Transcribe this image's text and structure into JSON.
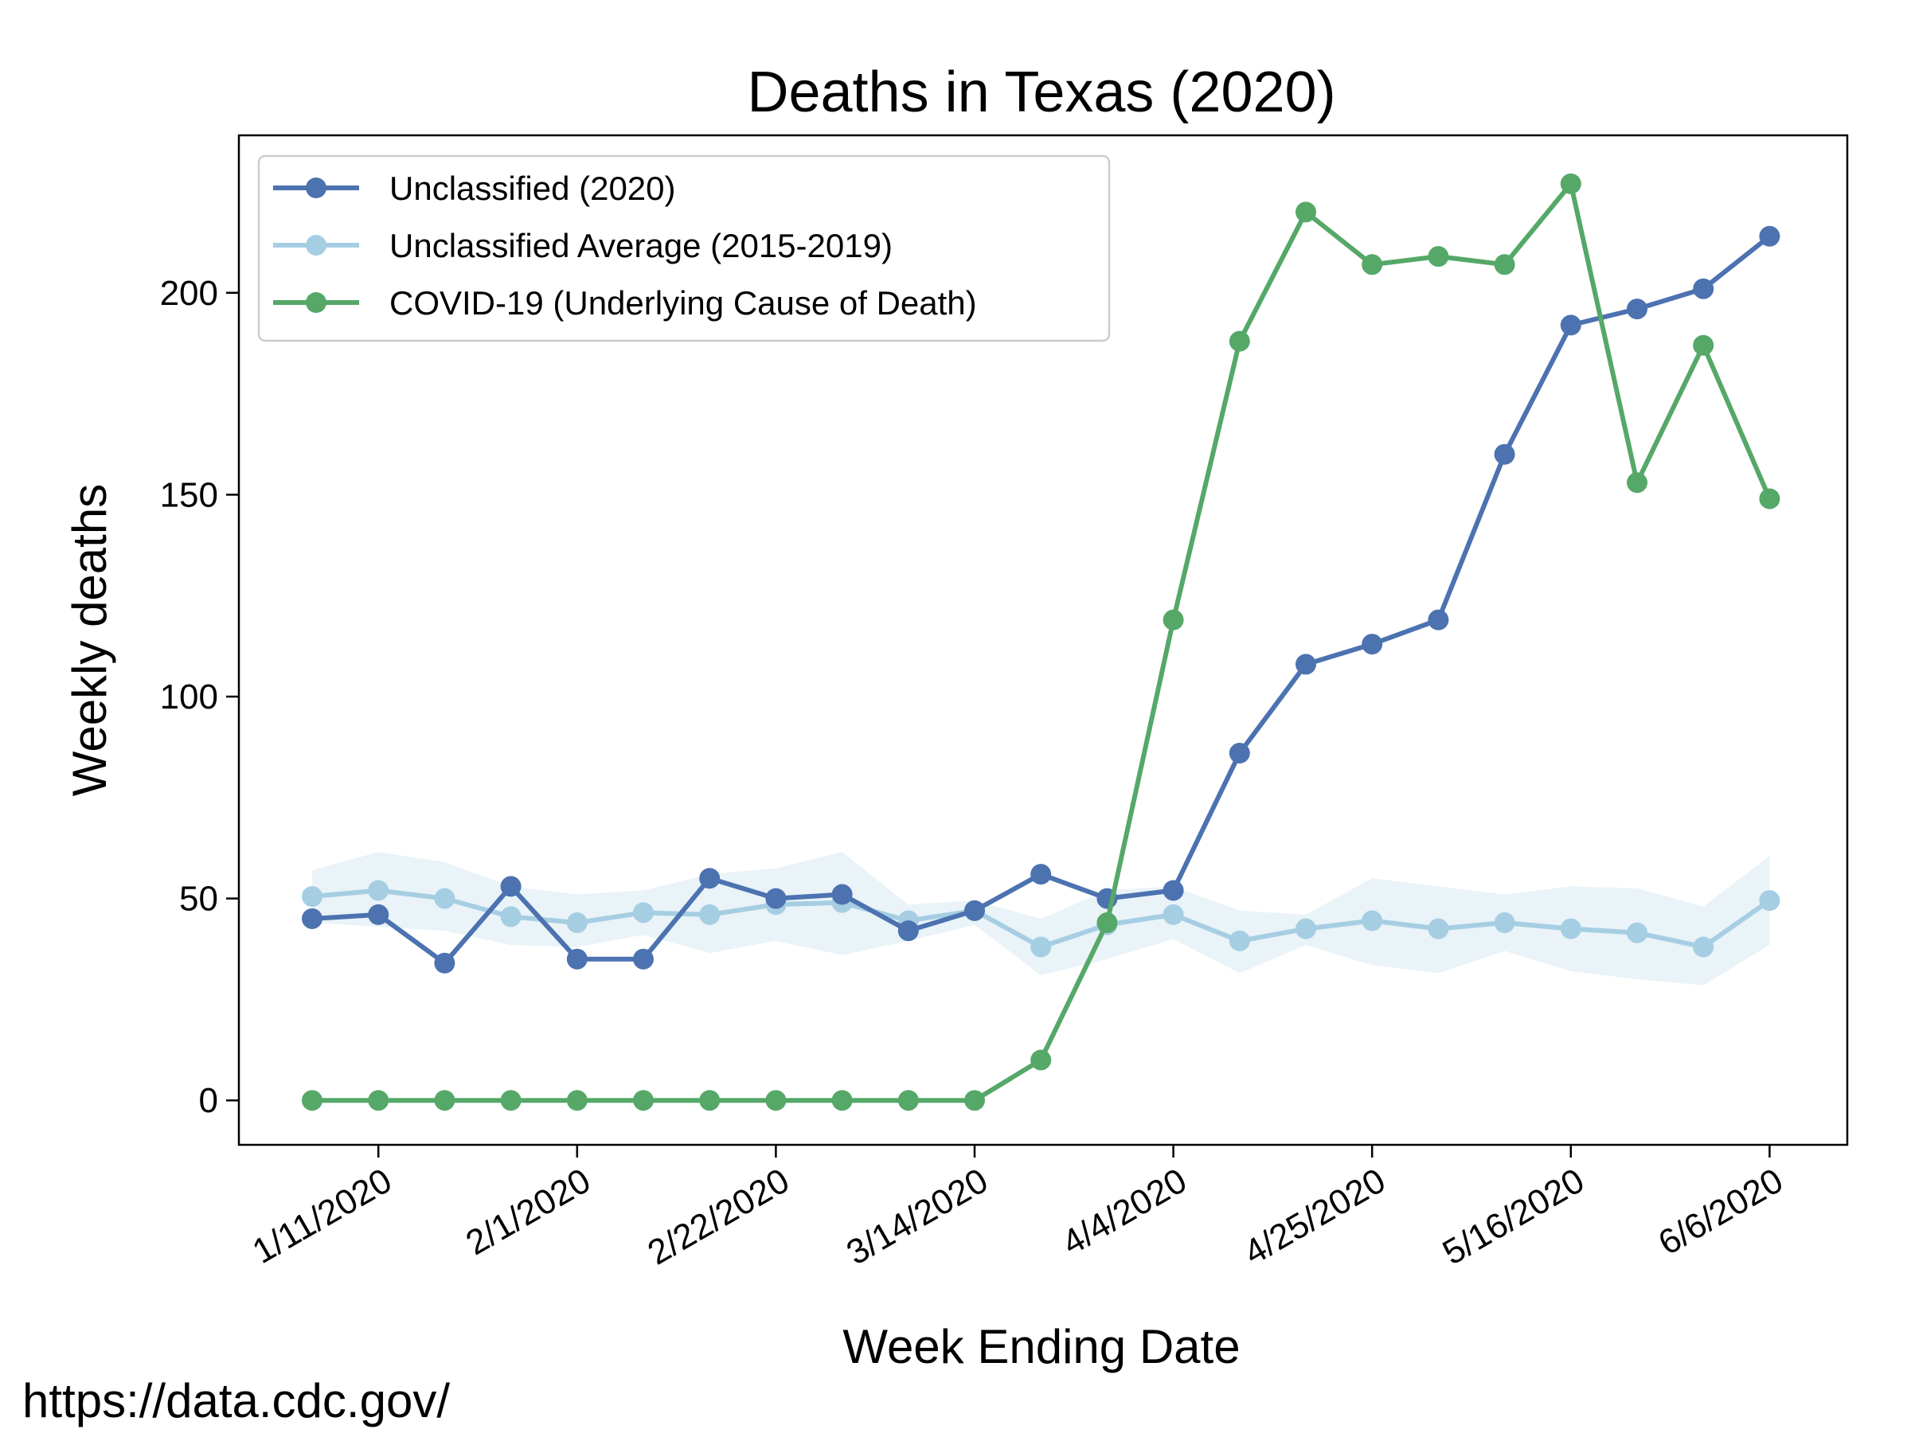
{
  "chart_data": {
    "type": "line",
    "title": "Deaths in Texas (2020)",
    "xlabel": "Week Ending Date",
    "ylabel": "Weekly deaths",
    "source": "https://data.cdc.gov/",
    "x": [
      "1/4/2020",
      "1/11/2020",
      "1/18/2020",
      "1/25/2020",
      "2/1/2020",
      "2/8/2020",
      "2/15/2020",
      "2/22/2020",
      "2/29/2020",
      "3/7/2020",
      "3/14/2020",
      "3/21/2020",
      "3/28/2020",
      "4/4/2020",
      "4/11/2020",
      "4/18/2020",
      "4/25/2020",
      "5/2/2020",
      "5/9/2020",
      "5/16/2020",
      "5/23/2020",
      "5/30/2020",
      "6/6/2020"
    ],
    "x_tick_labels": [
      "1/11/2020",
      "2/1/2020",
      "2/22/2020",
      "3/14/2020",
      "4/4/2020",
      "4/25/2020",
      "5/16/2020",
      "6/6/2020"
    ],
    "y_ticks": [
      0,
      50,
      100,
      150,
      200
    ],
    "ylim": [
      -11,
      239
    ],
    "grid": false,
    "legend_position": "top-left",
    "series": [
      {
        "name": "Unclassified (2020)",
        "color": "#4c72b0",
        "values": [
          45,
          46,
          34,
          53,
          35,
          35,
          55,
          50,
          51,
          42,
          47,
          56,
          50,
          52,
          86,
          108,
          113,
          119,
          160,
          192,
          196,
          201,
          214
        ]
      },
      {
        "name": "Unclassified Average (2015-2019)",
        "color": "#a6cee3",
        "values": [
          50.5,
          52,
          50,
          45.5,
          44,
          46.5,
          46,
          48.5,
          49,
          44.5,
          47,
          38,
          43.5,
          46,
          39.5,
          42.5,
          44.5,
          42.5,
          44,
          42.5,
          41.5,
          38,
          49.5
        ],
        "band_upper": [
          57,
          61.5,
          59,
          53,
          51,
          52,
          56,
          57.5,
          61.5,
          48.5,
          49.5,
          45,
          52,
          53,
          47,
          46,
          55,
          53,
          51,
          53,
          52.5,
          48,
          60.5
        ],
        "band_lower": [
          44,
          43,
          42,
          38.5,
          38,
          41,
          36.5,
          39.5,
          36,
          39.5,
          43.5,
          31,
          35,
          40,
          31.5,
          38.5,
          33.5,
          31.5,
          37,
          32,
          30,
          28.5,
          38.5
        ]
      },
      {
        "name": "COVID-19 (Underlying Cause of Death)",
        "color": "#55a868",
        "values": [
          0,
          0,
          0,
          0,
          0,
          0,
          0,
          0,
          0,
          0,
          0,
          10,
          44,
          119,
          188,
          220,
          207,
          209,
          207,
          227,
          153,
          187,
          149
        ]
      }
    ]
  }
}
